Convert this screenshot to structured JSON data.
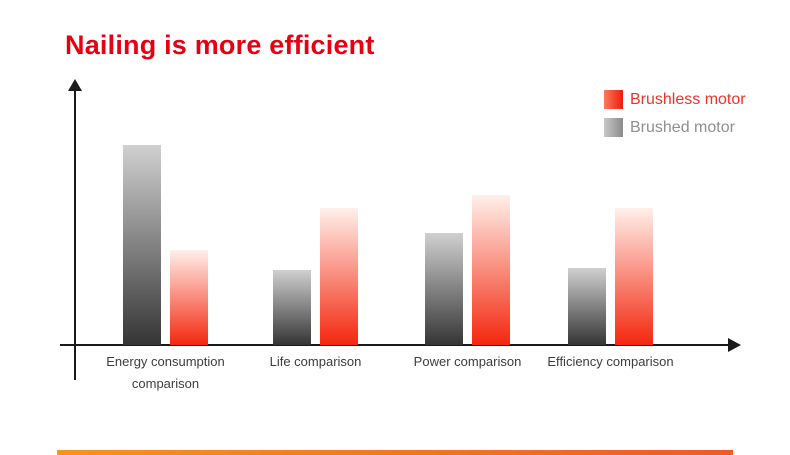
{
  "title": {
    "text": "Nailing is more efficient",
    "color": "#e60012"
  },
  "legend": {
    "items": [
      {
        "label": "Brushless motor",
        "text_color": "#e8352a",
        "swatch_from": "#ff7a5f",
        "swatch_to": "#ee1b0b"
      },
      {
        "label": "Brushed motor",
        "text_color": "#8f8f8f",
        "swatch_from": "#c9c9c9",
        "swatch_to": "#8a8a8a"
      }
    ]
  },
  "chart_data": {
    "type": "bar",
    "title": "Nailing is more efficient",
    "categories": [
      "Energy consumption comparison",
      "Life comparison",
      "Power comparison",
      "Efficiency comparison"
    ],
    "series": [
      {
        "name": "Brushed motor",
        "values": [
          80,
          30,
          45,
          31
        ],
        "color_bottom": "#353535",
        "color_top": "#d0d0d0"
      },
      {
        "name": "Brushless motor",
        "values": [
          38,
          55,
          60,
          55
        ],
        "color_bottom": "#f3270e",
        "color_top": "#fff0ea"
      }
    ],
    "xlabel": "",
    "ylabel": "",
    "ylim": [
      0,
      100
    ],
    "grid": false,
    "legend_position": "top-right"
  },
  "footer": {
    "accent_color_left": "#f7941d",
    "accent_color_right": "#f15a24"
  }
}
